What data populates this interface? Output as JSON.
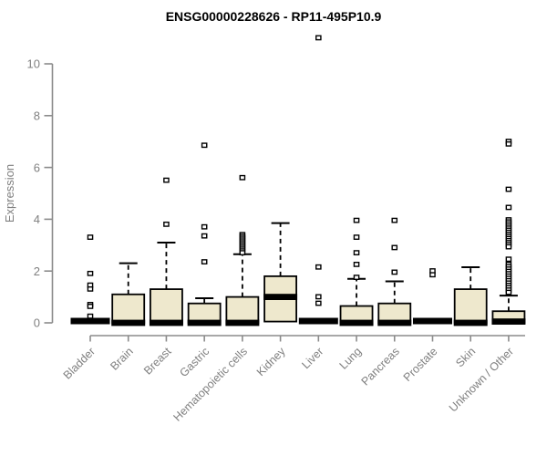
{
  "colors": {
    "box_fill": "#EEE8CD",
    "box_stroke": "#000000",
    "median_color": "#000000",
    "outlier_fill": "#FFFFFF",
    "axis_color": "#8B8B8B",
    "label_color": "#808080",
    "title_color": "#000000",
    "background": "#FFFFFF"
  },
  "chart_data": {
    "type": "boxplot",
    "title": "ENSG00000228626 - RP11-495P10.9",
    "xlabel": "",
    "ylabel": "Expression",
    "ylim": [
      0,
      10
    ],
    "yticks": [
      0,
      2,
      4,
      6,
      8,
      10
    ],
    "grid": "off",
    "legend": "none",
    "categories": [
      "Bladder",
      "Brain",
      "Breast",
      "Gastric",
      "Hematopoietic cells",
      "Kidney",
      "Liver",
      "Lung",
      "Pancreas",
      "Prostate",
      "Skin",
      "Unknown / Other"
    ],
    "series": [
      {
        "category": "Bladder",
        "flat": true,
        "q1": 0,
        "median": 0,
        "q3": 0,
        "whisker_low": 0,
        "whisker_high": 0,
        "outliers": [
          3.3,
          1.9,
          1.45,
          1.3,
          0.7,
          0.63,
          0.25
        ]
      },
      {
        "category": "Brain",
        "flat": false,
        "q1": 0,
        "median": 0,
        "q3": 1.1,
        "whisker_low": 0,
        "whisker_high": 2.3,
        "outliers": []
      },
      {
        "category": "Breast",
        "flat": false,
        "q1": 0,
        "median": 0,
        "q3": 1.3,
        "whisker_low": 0,
        "whisker_high": 3.1,
        "outliers": [
          5.5,
          3.8
        ]
      },
      {
        "category": "Gastric",
        "flat": false,
        "q1": 0,
        "median": 0,
        "q3": 0.75,
        "whisker_low": 0,
        "whisker_high": 0.95,
        "outliers": [
          6.85,
          3.7,
          3.35,
          2.35
        ]
      },
      {
        "category": "Hematopoietic cells",
        "flat": false,
        "q1": 0,
        "median": 0,
        "q3": 1.0,
        "whisker_low": 0,
        "whisker_high": 2.65,
        "outliers": [
          5.6,
          3.4,
          3.33,
          3.26,
          3.19,
          3.12,
          3.05,
          2.98,
          2.91,
          2.84,
          2.77,
          2.7
        ]
      },
      {
        "category": "Kidney",
        "flat": false,
        "q1": 0.05,
        "median": 1.0,
        "q3": 1.8,
        "whisker_low": 0.05,
        "whisker_high": 3.85,
        "outliers": []
      },
      {
        "category": "Liver",
        "flat": true,
        "q1": 0,
        "median": 0,
        "q3": 0,
        "whisker_low": 0,
        "whisker_high": 0,
        "outliers": [
          11.0,
          2.15,
          1.0,
          0.75
        ]
      },
      {
        "category": "Lung",
        "flat": false,
        "q1": 0,
        "median": 0,
        "q3": 0.65,
        "whisker_low": 0,
        "whisker_high": 1.7,
        "outliers": [
          3.95,
          3.3,
          2.7,
          2.25,
          1.75
        ]
      },
      {
        "category": "Pancreas",
        "flat": false,
        "q1": 0,
        "median": 0,
        "q3": 0.75,
        "whisker_low": 0,
        "whisker_high": 1.6,
        "outliers": [
          3.95,
          2.9,
          1.95
        ]
      },
      {
        "category": "Prostate",
        "flat": true,
        "q1": 0,
        "median": 0,
        "q3": 0,
        "whisker_low": 0,
        "whisker_high": 0,
        "outliers": [
          2.0,
          1.85
        ]
      },
      {
        "category": "Skin",
        "flat": false,
        "q1": 0,
        "median": 0,
        "q3": 1.3,
        "whisker_low": 0,
        "whisker_high": 2.15,
        "outliers": []
      },
      {
        "category": "Unknown / Other",
        "flat": false,
        "q1": 0,
        "median": 0.05,
        "q3": 0.45,
        "whisker_low": 0,
        "whisker_high": 1.05,
        "outliers": [
          7.0,
          6.9,
          5.15,
          4.45,
          3.97,
          3.89,
          3.81,
          3.73,
          3.65,
          3.57,
          3.49,
          3.41,
          3.33,
          3.25,
          3.17,
          3.09,
          3.01,
          2.93,
          2.45,
          2.25,
          2.16,
          2.07,
          1.98,
          1.89,
          1.8,
          1.71,
          1.62,
          1.53,
          1.44,
          1.35,
          1.26,
          1.17
        ]
      }
    ]
  }
}
